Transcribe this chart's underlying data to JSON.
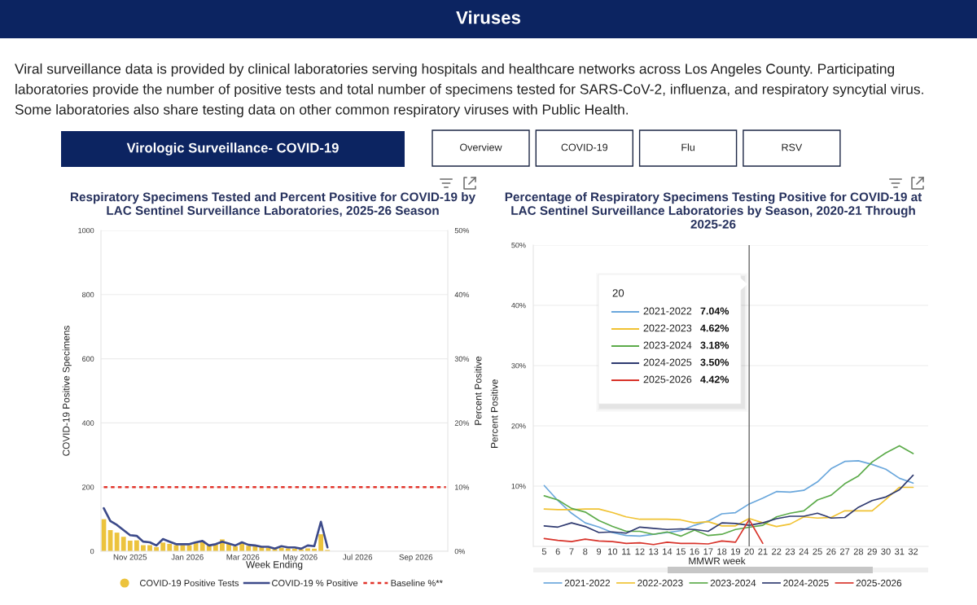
{
  "chart_data": [
    {
      "type": "other",
      "title": "Viruses",
      "annotations": [
        "Viral surveillance data is provided by clinical laboratories serving hospitals and healthcare networks across Los Angeles County. Participating",
        "laboratories provide the number of positive tests and total number of specimens tested for SARS-CoV-2, influenza, and respiratory syncytial virus.",
        "Some laboratories also share testing data on other common respiratory viruses with Public Health."
      ]
    },
    {
      "type": "other",
      "title": "Virologic Surveillance- COVID-19",
      "annotations": [
        "Overview",
        "COVID-19",
        "Flu",
        "RSV"
      ]
    },
    {
      "type": "bar",
      "title": "Respiratory Specimens Tested and Percent Positive for COVID-19 by LAC Sentinel Surveillance Laboratories, 2025-26 Season",
      "xlabel": "Week Ending",
      "ylabel": "COVID-19 Positive Specimens",
      "y2label": "Percent Positive",
      "x": [
        "2025-10-04",
        "2025-10-11",
        "2025-10-18",
        "2025-10-25",
        "2025-11-01",
        "2025-11-08",
        "2025-11-15",
        "2025-11-22",
        "2025-11-29",
        "2025-12-06",
        "2025-12-13",
        "2025-12-20",
        "2025-12-27",
        "2026-01-03",
        "2026-01-10",
        "2026-01-17",
        "2026-01-24",
        "2026-01-31",
        "2026-02-07",
        "2026-02-14",
        "2026-02-21",
        "2026-02-28",
        "2026-03-07",
        "2026-03-14",
        "2026-03-21",
        "2026-03-28",
        "2026-04-04",
        "2026-04-11",
        "2026-04-18",
        "2026-04-25",
        "2026-05-02",
        "2026-05-09",
        "2026-05-16",
        "2026-05-23",
        "2026-05-30"
      ],
      "xlim": [
        "2025-10-01",
        "2026-10-05"
      ],
      "xticks": [
        {
          "value": "2025-11-01",
          "label": "Nov 2025"
        },
        {
          "value": "2026-01-01",
          "label": "Jan 2026"
        },
        {
          "value": "2026-03-01",
          "label": "Mar 2026"
        },
        {
          "value": "2026-05-01",
          "label": "May 2026"
        },
        {
          "value": "2026-07-01",
          "label": "Jul 2026"
        },
        {
          "value": "2026-09-01",
          "label": "Sep 2026"
        }
      ],
      "ylim": [
        0,
        1000
      ],
      "yticks": [
        0,
        200,
        400,
        600,
        800,
        1000
      ],
      "y2lim": [
        0,
        50
      ],
      "y2ticks": [
        {
          "value": 0,
          "label": "0%"
        },
        {
          "value": 10,
          "label": "10%"
        },
        {
          "value": 20,
          "label": "20%"
        },
        {
          "value": 30,
          "label": "30%"
        },
        {
          "value": 40,
          "label": "40%"
        },
        {
          "value": 50,
          "label": "50%"
        }
      ],
      "series": [
        {
          "name": "COVID-19 Positive Tests",
          "type": "bar",
          "color": "#ecc33d",
          "values": [
            100,
            66,
            58,
            45,
            33,
            34,
            19,
            19,
            13,
            27,
            23,
            19,
            19,
            19,
            27,
            32,
            19,
            21,
            37,
            24,
            15,
            27,
            17,
            15,
            13,
            11,
            8,
            11,
            9,
            8,
            6,
            9,
            8,
            53,
            4
          ]
        },
        {
          "name": "COVID-19 % Positive",
          "type": "line",
          "axis": "y2",
          "color": "#3c4a8a",
          "values": [
            6.7,
            4.7,
            4.1,
            3.3,
            2.5,
            2.4,
            1.5,
            1.4,
            0.9,
            1.9,
            1.5,
            1.1,
            1.1,
            1.1,
            1.4,
            1.6,
            0.9,
            1.1,
            1.5,
            1.2,
            0.9,
            1.4,
            1.0,
            0.9,
            0.7,
            0.7,
            0.4,
            0.8,
            0.6,
            0.6,
            0.4,
            0.9,
            0.8,
            4.6,
            0.6
          ]
        },
        {
          "name": "Baseline %**",
          "type": "line",
          "axis": "y2",
          "line_style": "dashed",
          "color": "#e2342b",
          "x": [
            "2025-10-04",
            "2026-10-03"
          ],
          "values": [
            10,
            10
          ]
        }
      ],
      "grid": "y",
      "legend": "bottom"
    },
    {
      "type": "line",
      "title": "Percentage of Respiratory Specimens Testing Positive for COVID-19 at LAC Sentinel Surveillance Laboratories by Season, 2020-21 Through 2025-26",
      "xlabel": "MMWR week",
      "ylabel": "Percent Positive",
      "x": [
        5,
        6,
        7,
        8,
        9,
        10,
        11,
        12,
        13,
        14,
        15,
        16,
        17,
        18,
        19,
        20,
        21,
        22,
        23,
        24,
        25,
        26,
        27,
        28,
        29,
        30,
        31,
        32
      ],
      "xlim": [
        4.2,
        33.1
      ],
      "xticks": [
        5,
        6,
        7,
        8,
        9,
        10,
        11,
        12,
        13,
        14,
        15,
        16,
        17,
        18,
        19,
        20,
        21,
        22,
        23,
        24,
        25,
        26,
        27,
        28,
        29,
        30,
        31,
        32
      ],
      "ylim": [
        0,
        50
      ],
      "yticks": [
        {
          "value": 10,
          "label": "10%"
        },
        {
          "value": 20,
          "label": "20%"
        },
        {
          "value": 30,
          "label": "30%"
        },
        {
          "value": 40,
          "label": "40%"
        },
        {
          "value": 50,
          "label": "50%"
        }
      ],
      "series": [
        {
          "name": "2021-2022",
          "color": "#6aa7dc",
          "values": [
            10.1,
            7.6,
            5.5,
            3.9,
            3.2,
            2.3,
            1.8,
            1.7,
            2.0,
            2.3,
            2.6,
            3.5,
            4.2,
            5.4,
            5.6,
            7.04,
            8.0,
            9.1,
            9.0,
            9.3,
            10.7,
            12.9,
            14.1,
            14.2,
            13.6,
            12.8,
            11.3,
            10.5
          ]
        },
        {
          "name": "2022-2023",
          "color": "#f0c232",
          "values": [
            6.2,
            6.1,
            6.1,
            6.2,
            6.2,
            5.6,
            4.9,
            4.5,
            4.5,
            4.5,
            4.4,
            3.9,
            4.1,
            3.4,
            3.4,
            4.62,
            3.9,
            3.3,
            3.7,
            4.9,
            4.7,
            4.8,
            5.9,
            5.9,
            5.9,
            7.8,
            9.8,
            9.8
          ]
        },
        {
          "name": "2023-2024",
          "color": "#5cab4a",
          "values": [
            8.4,
            7.7,
            6.3,
            5.7,
            4.3,
            3.3,
            2.5,
            2.5,
            2.0,
            2.4,
            1.7,
            2.7,
            1.8,
            2.0,
            2.8,
            3.18,
            3.5,
            4.9,
            5.5,
            5.9,
            7.7,
            8.5,
            10.4,
            11.7,
            14.0,
            15.5,
            16.7,
            15.4
          ]
        },
        {
          "name": "2024-2025",
          "color": "#2f3a70",
          "values": [
            3.4,
            3.2,
            3.9,
            3.3,
            2.3,
            2.4,
            2.2,
            3.2,
            3.0,
            2.8,
            2.9,
            2.8,
            2.5,
            3.9,
            3.8,
            3.5,
            3.9,
            4.6,
            5.0,
            5.0,
            5.5,
            4.7,
            4.8,
            6.5,
            7.6,
            8.2,
            9.4,
            11.8
          ]
        },
        {
          "name": "2025-2026",
          "color": "#d8332a",
          "values": [
            1.3,
            1.0,
            0.8,
            1.2,
            0.9,
            0.8,
            0.5,
            0.6,
            0.3,
            0.7,
            0.5,
            0.5,
            0.4,
            0.9,
            0.7,
            4.42,
            0.5,
            null,
            null,
            null,
            null,
            null,
            null,
            null,
            null,
            null,
            null,
            null
          ]
        }
      ],
      "ref_lines": [
        {
          "axis": "x",
          "value": 20,
          "color": "#5a5a5a"
        }
      ],
      "annotations": [
        "20",
        "7.04%",
        "4.62%",
        "3.18%",
        "3.50%",
        "4.42%"
      ],
      "grid": "y",
      "legend": "bottom"
    }
  ]
}
